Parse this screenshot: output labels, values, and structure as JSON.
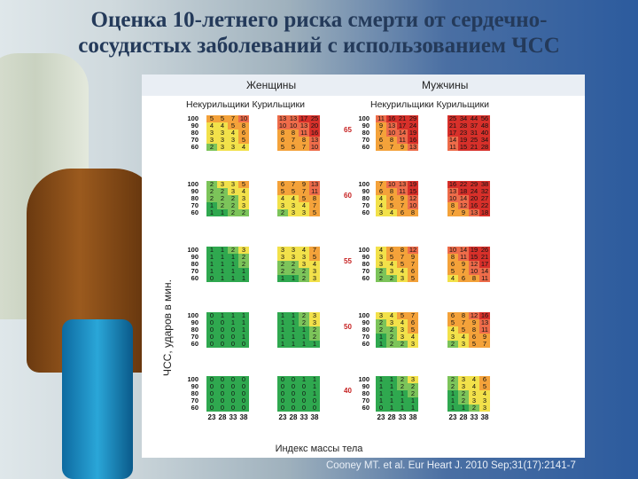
{
  "title_line1": "Оценка 10-летнего риска смерти от сердечно-",
  "title_line2": "сосудистых заболеваний с использованием ЧСС",
  "header": {
    "women": "Женщины",
    "men": "Мужчины",
    "women_sub": "Некурильщики  Курильщики",
    "men_sub": "Некурильщики Курильщики"
  },
  "ylabel": "ЧСС, ударов в мин.",
  "xlabel": "Индекс массы тела",
  "citation": "Cooney MT. et al. Eur Heart J. 2010 Sep;31(17):2141-7",
  "hr_labels": [
    "100",
    "90",
    "80",
    "70",
    "60"
  ],
  "bmi_labels": [
    "23",
    "28",
    "33",
    "38"
  ],
  "ages": [
    "65",
    "60",
    "55",
    "50",
    "40"
  ],
  "colors": {
    "dark_green": "#2fa84f",
    "green": "#7cc45a",
    "yellow": "#f2e14a",
    "orange": "#f4a23a",
    "light_red": "#ee6c4a",
    "red": "#d7302a"
  },
  "chart_data": {
    "type": "table",
    "blocks": [
      {
        "age": "65",
        "women_nonsmokers": [
          [
            "5",
            "5",
            "7",
            "10"
          ],
          [
            "4",
            "4",
            "5",
            "8"
          ],
          [
            "3",
            "3",
            "4",
            "6"
          ],
          [
            "3",
            "3",
            "3",
            "5"
          ],
          [
            "2",
            "3",
            "3",
            "4"
          ]
        ],
        "women_smokers": [
          [
            "13",
            "13",
            "17",
            "25"
          ],
          [
            "10",
            "10",
            "13",
            "20"
          ],
          [
            "8",
            "8",
            "11",
            "16"
          ],
          [
            "6",
            "7",
            "8",
            "13"
          ],
          [
            "5",
            "5",
            "7",
            "10"
          ]
        ],
        "men_nonsmokers": [
          [
            "11",
            "16",
            "21",
            "29"
          ],
          [
            "9",
            "13",
            "17",
            "24"
          ],
          [
            "7",
            "10",
            "14",
            "19"
          ],
          [
            "6",
            "8",
            "11",
            "16"
          ],
          [
            "5",
            "7",
            "9",
            "13"
          ]
        ],
        "men_smokers": [
          [
            "25",
            "34",
            "44",
            "56"
          ],
          [
            "21",
            "28",
            "37",
            "48"
          ],
          [
            "17",
            "23",
            "31",
            "40"
          ],
          [
            "14",
            "19",
            "25",
            "34"
          ],
          [
            "11",
            "15",
            "21",
            "28"
          ]
        ]
      },
      {
        "age": "60",
        "women_nonsmokers": [
          [
            "2",
            "3",
            "3",
            "5"
          ],
          [
            "2",
            "2",
            "3",
            "4"
          ],
          [
            "2",
            "2",
            "2",
            "3"
          ],
          [
            "1",
            "2",
            "2",
            "3"
          ],
          [
            "1",
            "1",
            "2",
            "2"
          ]
        ],
        "women_smokers": [
          [
            "6",
            "7",
            "9",
            "13"
          ],
          [
            "5",
            "5",
            "7",
            "11"
          ],
          [
            "4",
            "4",
            "5",
            "8"
          ],
          [
            "3",
            "3",
            "4",
            "7"
          ],
          [
            "2",
            "3",
            "3",
            "5"
          ]
        ],
        "men_nonsmokers": [
          [
            "7",
            "10",
            "13",
            "19"
          ],
          [
            "6",
            "8",
            "11",
            "15"
          ],
          [
            "4",
            "6",
            "9",
            "12"
          ],
          [
            "4",
            "5",
            "7",
            "10"
          ],
          [
            "3",
            "4",
            "6",
            "8"
          ]
        ],
        "men_smokers": [
          [
            "16",
            "22",
            "29",
            "38"
          ],
          [
            "13",
            "18",
            "24",
            "32"
          ],
          [
            "10",
            "14",
            "20",
            "27"
          ],
          [
            "8",
            "12",
            "16",
            "22"
          ],
          [
            "7",
            "9",
            "13",
            "18"
          ]
        ]
      },
      {
        "age": "55",
        "women_nonsmokers": [
          [
            "1",
            "1",
            "2",
            "3"
          ],
          [
            "1",
            "1",
            "1",
            "2"
          ],
          [
            "1",
            "1",
            "1",
            "2"
          ],
          [
            "1",
            "1",
            "1",
            "1"
          ],
          [
            "0",
            "1",
            "1",
            "1"
          ]
        ],
        "women_smokers": [
          [
            "3",
            "3",
            "4",
            "7"
          ],
          [
            "3",
            "3",
            "3",
            "5"
          ],
          [
            "2",
            "2",
            "3",
            "4"
          ],
          [
            "2",
            "2",
            "2",
            "3"
          ],
          [
            "1",
            "1",
            "2",
            "3"
          ]
        ],
        "men_nonsmokers": [
          [
            "4",
            "6",
            "8",
            "12"
          ],
          [
            "3",
            "5",
            "7",
            "9"
          ],
          [
            "3",
            "4",
            "5",
            "7"
          ],
          [
            "2",
            "3",
            "4",
            "6"
          ],
          [
            "2",
            "2",
            "3",
            "5"
          ]
        ],
        "men_smokers": [
          [
            "10",
            "14",
            "19",
            "26"
          ],
          [
            "8",
            "11",
            "15",
            "21"
          ],
          [
            "6",
            "9",
            "12",
            "17"
          ],
          [
            "5",
            "7",
            "10",
            "14"
          ],
          [
            "4",
            "6",
            "8",
            "11"
          ]
        ]
      },
      {
        "age": "50",
        "women_nonsmokers": [
          [
            "0",
            "1",
            "1",
            "1"
          ],
          [
            "0",
            "0",
            "1",
            "1"
          ],
          [
            "0",
            "0",
            "0",
            "1"
          ],
          [
            "0",
            "0",
            "0",
            "1"
          ],
          [
            "0",
            "0",
            "0",
            "0"
          ]
        ],
        "women_smokers": [
          [
            "1",
            "1",
            "2",
            "3"
          ],
          [
            "1",
            "1",
            "2",
            "3"
          ],
          [
            "1",
            "1",
            "1",
            "2"
          ],
          [
            "1",
            "1",
            "1",
            "2"
          ],
          [
            "1",
            "1",
            "1",
            "1"
          ]
        ],
        "men_nonsmokers": [
          [
            "3",
            "4",
            "5",
            "7"
          ],
          [
            "2",
            "3",
            "4",
            "6"
          ],
          [
            "2",
            "2",
            "3",
            "5"
          ],
          [
            "1",
            "2",
            "3",
            "4"
          ],
          [
            "1",
            "2",
            "2",
            "3"
          ]
        ],
        "men_smokers": [
          [
            "6",
            "8",
            "12",
            "16"
          ],
          [
            "5",
            "7",
            "9",
            "13"
          ],
          [
            "4",
            "5",
            "8",
            "11"
          ],
          [
            "3",
            "4",
            "6",
            "9"
          ],
          [
            "2",
            "3",
            "5",
            "7"
          ]
        ]
      },
      {
        "age": "40",
        "women_nonsmokers": [
          [
            "0",
            "0",
            "0",
            "0"
          ],
          [
            "0",
            "0",
            "0",
            "0"
          ],
          [
            "0",
            "0",
            "0",
            "0"
          ],
          [
            "0",
            "0",
            "0",
            "0"
          ],
          [
            "0",
            "0",
            "0",
            "0"
          ]
        ],
        "women_smokers": [
          [
            "0",
            "0",
            "1",
            "1"
          ],
          [
            "0",
            "0",
            "0",
            "1"
          ],
          [
            "0",
            "0",
            "0",
            "1"
          ],
          [
            "0",
            "0",
            "0",
            "0"
          ],
          [
            "0",
            "0",
            "0",
            "0"
          ]
        ],
        "men_nonsmokers": [
          [
            "1",
            "1",
            "2",
            "3"
          ],
          [
            "1",
            "1",
            "2",
            "2"
          ],
          [
            "1",
            "1",
            "1",
            "2"
          ],
          [
            "1",
            "1",
            "1",
            "1"
          ],
          [
            "0",
            "1",
            "1",
            "1"
          ]
        ],
        "men_smokers": [
          [
            "2",
            "3",
            "4",
            "6"
          ],
          [
            "2",
            "3",
            "4",
            "5"
          ],
          [
            "1",
            "2",
            "3",
            "4"
          ],
          [
            "1",
            "2",
            "3",
            "3"
          ],
          [
            "1",
            "1",
            "2",
            "3"
          ]
        ]
      }
    ]
  }
}
